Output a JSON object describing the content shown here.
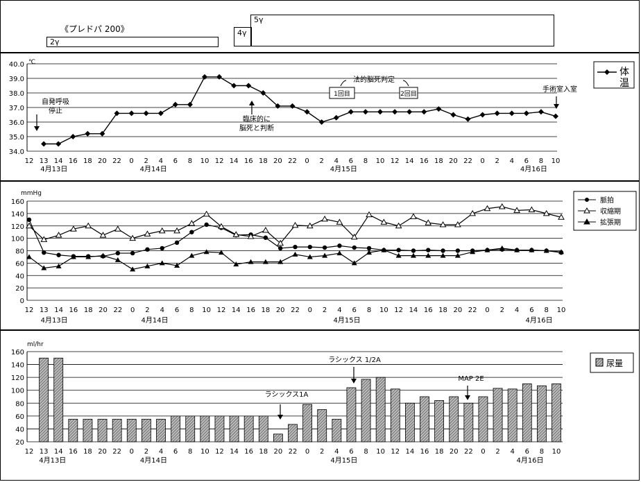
{
  "dose": {
    "drug_label": "《プレドパ 200》",
    "dose_1": "2γ",
    "dose_2": "4γ",
    "dose_3": "5γ"
  },
  "x_axis": {
    "time_ticks": [
      "12",
      "13",
      "14",
      "16",
      "18",
      "20",
      "22",
      "0",
      "2",
      "4",
      "6",
      "8",
      "10",
      "12",
      "14",
      "16",
      "18",
      "20",
      "22",
      "0",
      "2",
      "4",
      "6",
      "8",
      "10",
      "12",
      "14",
      "16",
      "18",
      "20",
      "22",
      "0",
      "2",
      "4",
      "6",
      "8",
      "10"
    ],
    "dates": [
      "4月13日",
      "4月14日",
      "4月15日",
      "4月16日"
    ]
  },
  "chart_data": [
    {
      "type": "line",
      "ylabel": "℃",
      "ylim": [
        34.0,
        40.0
      ],
      "yticks": [
        "40.0",
        "39.0",
        "38.0",
        "37.0",
        "36.0",
        "35.0",
        "34.0"
      ],
      "series": [
        {
          "name": "体温",
          "values": [
            null,
            34.5,
            34.5,
            35.0,
            35.2,
            35.2,
            36.6,
            36.6,
            36.6,
            36.6,
            37.2,
            37.2,
            39.1,
            39.1,
            38.5,
            38.5,
            38.0,
            37.1,
            37.1,
            36.7,
            36.0,
            36.3,
            36.7,
            36.7,
            36.7,
            36.7,
            36.7,
            36.7,
            36.9,
            36.5,
            36.2,
            36.5,
            36.6,
            36.6,
            36.6,
            36.7,
            36.4
          ]
        }
      ],
      "legend": [
        "体温"
      ],
      "annotations": {
        "apnea": "自発呼吸\n停止",
        "clinical": "臨床的に\n脳死と判断",
        "legal": "法的脳死判定",
        "first": "1回目",
        "second": "2回目",
        "or_entry": "手術室入室"
      }
    },
    {
      "type": "line",
      "ylabel": "mmHg",
      "ylim": [
        0,
        160
      ],
      "yticks": [
        "160",
        "140",
        "120",
        "100",
        "80",
        "60",
        "40",
        "20",
        "0"
      ],
      "series": [
        {
          "name": "脈拍",
          "values": [
            130,
            77,
            73,
            71,
            71,
            71,
            76,
            76,
            82,
            84,
            93,
            110,
            122,
            117,
            105,
            106,
            101,
            84,
            86,
            86,
            85,
            88,
            85,
            84,
            81,
            81,
            80,
            81,
            80,
            80,
            80,
            81,
            82,
            81,
            81,
            80,
            77
          ]
        },
        {
          "name": "収縮期",
          "values": [
            120,
            98,
            105,
            115,
            120,
            105,
            115,
            100,
            107,
            112,
            112,
            124,
            139,
            119,
            106,
            103,
            113,
            92,
            121,
            120,
            131,
            126,
            102,
            138,
            126,
            120,
            135,
            125,
            122,
            122,
            140,
            148,
            151,
            145,
            146,
            140,
            134
          ]
        },
        {
          "name": "拡張期",
          "values": [
            70,
            52,
            55,
            70,
            70,
            72,
            65,
            50,
            55,
            60,
            56,
            72,
            78,
            77,
            58,
            62,
            62,
            62,
            74,
            70,
            72,
            76,
            60,
            77,
            81,
            72,
            72,
            72,
            72,
            72,
            78,
            81,
            84,
            81,
            81,
            80,
            78
          ]
        }
      ],
      "legend": [
        "脈拍",
        "収縮期",
        "拡張期"
      ]
    },
    {
      "type": "bar",
      "ylabel": "ml/hr",
      "ylim": [
        20,
        160
      ],
      "yticks": [
        "160",
        "140",
        "120",
        "100",
        "80",
        "60",
        "40",
        "20"
      ],
      "series": [
        {
          "name": "尿量",
          "values": [
            null,
            150,
            150,
            55,
            55,
            55,
            55,
            55,
            55,
            55,
            60,
            60,
            60,
            60,
            60,
            60,
            60,
            32,
            47,
            78,
            70,
            55,
            104,
            117,
            120,
            102,
            80,
            90,
            84,
            90,
            80,
            90,
            103,
            102,
            110,
            107,
            110
          ]
        }
      ],
      "legend": [
        "尿量"
      ],
      "annotations": {
        "lasix_1a": "ラシックス1A",
        "lasix_half": "ラシックス 1/2A",
        "map": "MAP 2E"
      }
    }
  ]
}
